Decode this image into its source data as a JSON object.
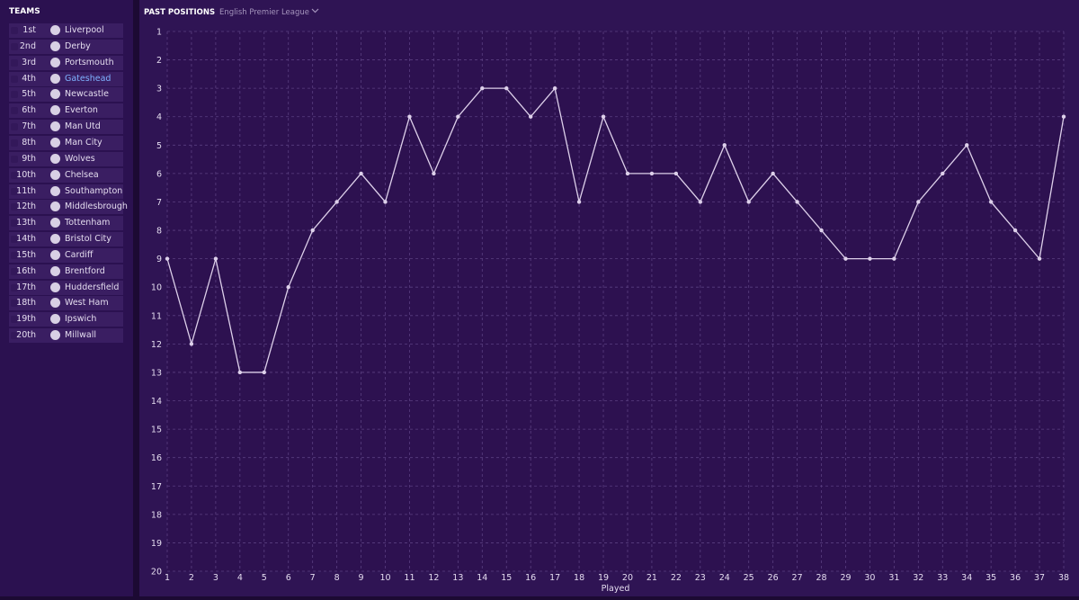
{
  "sidebar": {
    "title": "TEAMS",
    "teams": [
      {
        "rank": "1st",
        "name": "Liverpool"
      },
      {
        "rank": "2nd",
        "name": "Derby"
      },
      {
        "rank": "3rd",
        "name": "Portsmouth"
      },
      {
        "rank": "4th",
        "name": "Gateshead"
      },
      {
        "rank": "5th",
        "name": "Newcastle"
      },
      {
        "rank": "6th",
        "name": "Everton"
      },
      {
        "rank": "7th",
        "name": "Man Utd"
      },
      {
        "rank": "8th",
        "name": "Man City"
      },
      {
        "rank": "9th",
        "name": "Wolves"
      },
      {
        "rank": "10th",
        "name": "Chelsea"
      },
      {
        "rank": "11th",
        "name": "Southampton"
      },
      {
        "rank": "12th",
        "name": "Middlesbrough"
      },
      {
        "rank": "13th",
        "name": "Tottenham"
      },
      {
        "rank": "14th",
        "name": "Bristol City"
      },
      {
        "rank": "15th",
        "name": "Cardiff"
      },
      {
        "rank": "16th",
        "name": "Brentford"
      },
      {
        "rank": "17th",
        "name": "Huddersfield"
      },
      {
        "rank": "18th",
        "name": "West Ham"
      },
      {
        "rank": "19th",
        "name": "Ipswich"
      },
      {
        "rank": "20th",
        "name": "Millwall"
      }
    ]
  },
  "chart_data": {
    "type": "line",
    "title": "PAST POSITIONS",
    "subtitle": "English Premier League",
    "x_label": "Played",
    "x": [
      1,
      2,
      3,
      4,
      5,
      6,
      7,
      8,
      9,
      10,
      11,
      12,
      13,
      14,
      15,
      16,
      17,
      18,
      19,
      20,
      21,
      22,
      23,
      24,
      25,
      26,
      27,
      28,
      29,
      30,
      31,
      32,
      33,
      34,
      35,
      36,
      37,
      38
    ],
    "values": [
      9,
      12,
      9,
      13,
      13,
      10,
      8,
      7,
      6,
      7,
      4,
      6,
      4,
      3,
      3,
      4,
      3,
      7,
      4,
      6,
      6,
      6,
      7,
      5,
      7,
      6,
      7,
      8,
      9,
      9,
      9,
      7,
      6,
      5,
      7,
      8,
      9,
      4
    ],
    "color": "#ddd0ea",
    "xlim": [
      1,
      38
    ],
    "xticks": [
      1,
      2,
      3,
      4,
      5,
      6,
      7,
      8,
      9,
      10,
      11,
      12,
      13,
      14,
      15,
      16,
      17,
      18,
      19,
      20,
      21,
      22,
      23,
      24,
      25,
      26,
      27,
      28,
      29,
      30,
      31,
      32,
      33,
      34,
      35,
      36,
      37,
      38
    ],
    "ylim": [
      1,
      20
    ],
    "yticks": [
      1,
      2,
      3,
      4,
      5,
      6,
      7,
      8,
      9,
      10,
      11,
      12,
      13,
      14,
      15,
      16,
      17,
      18,
      19,
      20
    ],
    "y_inverted": true,
    "grid": true
  }
}
